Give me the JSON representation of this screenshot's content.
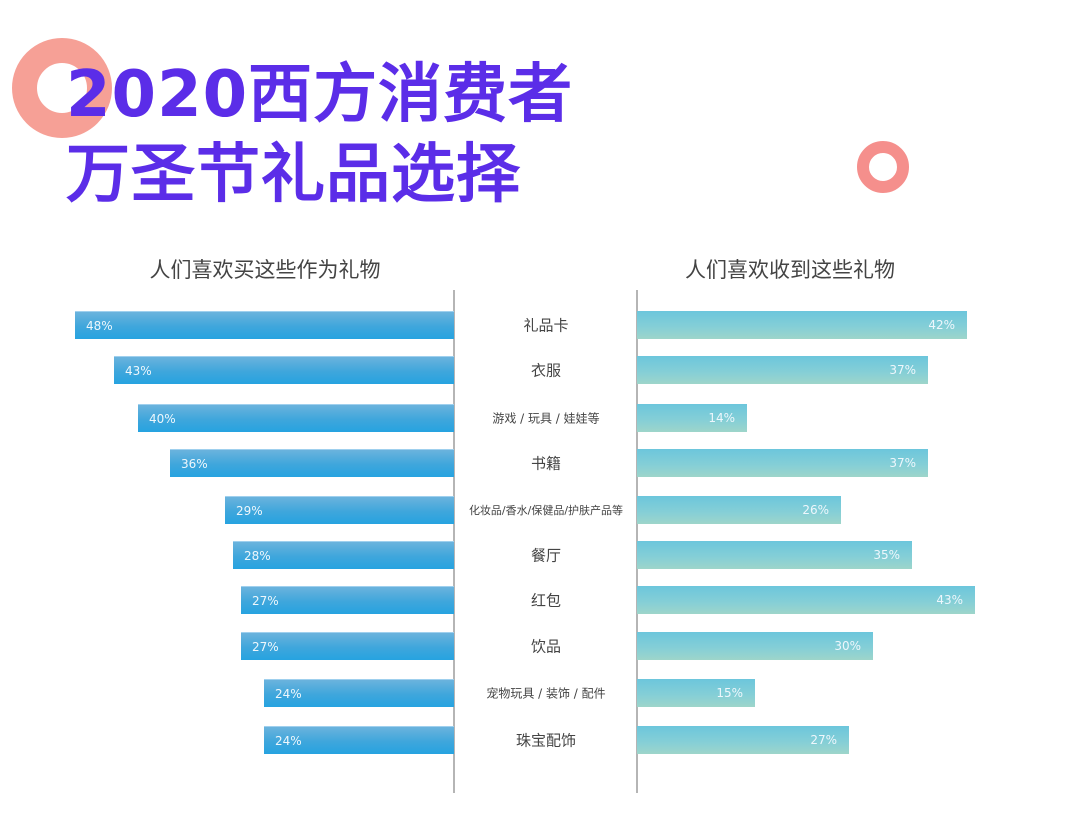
{
  "title": {
    "line1": "2020西方消费者",
    "line2": "万圣节礼品选择"
  },
  "colors": {
    "title": "#5b2de8",
    "ring": "#f6a096",
    "buy_bar": "#3ea6dc",
    "receive_bar": "#86cfd6",
    "axis": "#b5b5b5"
  },
  "left_panel": {
    "title": "人们喜欢买这些作为礼物"
  },
  "right_panel": {
    "title": "人们喜欢收到这些礼物"
  },
  "categories": [
    {
      "label": "礼品卡",
      "size": "lg"
    },
    {
      "label": "衣服",
      "size": "lg"
    },
    {
      "label": "游戏 / 玩具 / 娃娃等",
      "size": "sm"
    },
    {
      "label": "书籍",
      "size": "lg"
    },
    {
      "label": "化妆品/香水/保健品/护肤产品等",
      "size": "xs"
    },
    {
      "label": "餐厅",
      "size": "lg"
    },
    {
      "label": "红包",
      "size": "lg"
    },
    {
      "label": "饮品",
      "size": "lg"
    },
    {
      "label": "宠物玩具 / 装饰 / 配件",
      "size": "sm"
    },
    {
      "label": "珠宝配饰",
      "size": "lg"
    }
  ],
  "buy_values": [
    "48%",
    "43%",
    "40%",
    "36%",
    "29%",
    "28%",
    "27%",
    "27%",
    "24%",
    "24%"
  ],
  "receive_values": [
    "42%",
    "37%",
    "14%",
    "37%",
    "26%",
    "35%",
    "43%",
    "30%",
    "15%",
    "27%"
  ],
  "chart_data": {
    "type": "bar",
    "orientation": "horizontal-butterfly",
    "title": "2020西方消费者万圣节礼品选择",
    "categories": [
      "礼品卡",
      "衣服",
      "游戏 / 玩具 / 娃娃等",
      "书籍",
      "化妆品/香水/保健品/护肤产品等",
      "餐厅",
      "红包",
      "饮品",
      "宠物玩具 / 装饰 / 配件",
      "珠宝配饰"
    ],
    "series": [
      {
        "name": "人们喜欢买这些作为礼物",
        "side": "left",
        "values": [
          48,
          43,
          40,
          36,
          29,
          28,
          27,
          27,
          24,
          24
        ]
      },
      {
        "name": "人们喜欢收到这些礼物",
        "side": "right",
        "values": [
          42,
          37,
          14,
          37,
          26,
          35,
          43,
          30,
          15,
          27
        ]
      }
    ],
    "unit": "%",
    "xlabel": "",
    "ylabel": "",
    "grid": false,
    "legend": "panel titles above each side"
  }
}
